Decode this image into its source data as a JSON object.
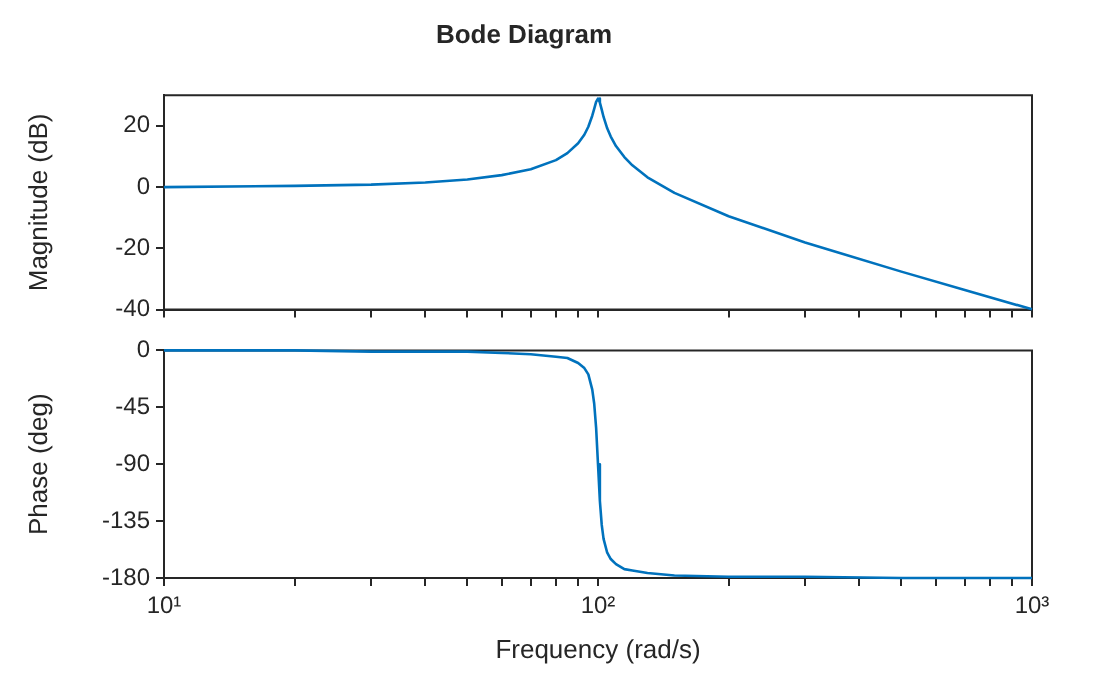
{
  "chart_data": [
    {
      "type": "line",
      "title": "Bode Diagram",
      "ylabel": "Magnitude (dB)",
      "tick_labels": "y",
      "x": [
        10,
        20,
        30,
        40,
        50,
        60,
        70,
        80,
        85,
        90,
        93,
        95,
        97,
        98,
        99,
        100,
        101,
        102,
        103,
        105,
        107,
        110,
        115,
        120,
        130,
        150,
        200,
        300,
        500,
        700,
        1000
      ],
      "series": [
        {
          "color": "#0072bd",
          "values": [
            0,
            0.4,
            0.8,
            1.5,
            2.5,
            3.9,
            5.8,
            8.8,
            11.1,
            14.3,
            17.1,
            19.7,
            23.3,
            25.5,
            27.8,
            28.9,
            27.6,
            25.3,
            22.9,
            19.2,
            16.5,
            13.4,
            9.8,
            7.1,
            3.2,
            -1.9,
            -9.5,
            -18.1,
            -27.6,
            -33.6,
            -39.9
          ]
        }
      ],
      "log": "x",
      "xlim": [
        10,
        1000
      ],
      "xticks": [
        10,
        {
          "value": 20,
          "label": null
        },
        {
          "value": 30,
          "label": null
        },
        {
          "value": 40,
          "label": null
        },
        {
          "value": 50,
          "label": null
        },
        {
          "value": 60,
          "label": null
        },
        {
          "value": 70,
          "label": null
        },
        {
          "value": 80,
          "label": null
        },
        {
          "value": 90,
          "label": null
        },
        100,
        {
          "value": 200,
          "label": null
        },
        {
          "value": 300,
          "label": null
        },
        {
          "value": 400,
          "label": null
        },
        {
          "value": 500,
          "label": null
        },
        {
          "value": 600,
          "label": null
        },
        {
          "value": 700,
          "label": null
        },
        {
          "value": 800,
          "label": null
        },
        {
          "value": 900,
          "label": null
        },
        1000
      ],
      "ylim": [
        -40,
        30
      ],
      "yticks": [
        -40,
        -20,
        0,
        20
      ]
    },
    {
      "type": "line",
      "xlabel": "Frequency (rad/s)",
      "ylabel": "Phase (deg)",
      "x": [
        10,
        20,
        30,
        40,
        50,
        60,
        70,
        80,
        85,
        90,
        93,
        95,
        97,
        98,
        99,
        100,
        101,
        102,
        103,
        105,
        107,
        110,
        115,
        120,
        130,
        150,
        200,
        300,
        500,
        700,
        1000
      ],
      "series": [
        {
          "color": "#0072bd",
          "values": [
            0,
            0,
            -1,
            -1,
            -1,
            -2,
            -3,
            -5,
            -6,
            -10,
            -14,
            -19,
            -31,
            -42,
            -61,
            -90,
            -119,
            -138,
            -149,
            -160,
            -165,
            -169,
            -173,
            -174,
            -176,
            -178,
            -179,
            -179,
            -180,
            -180,
            -180
          ]
        }
      ],
      "log": "x",
      "xlim": [
        10,
        1000
      ],
      "xticks": [
        {
          "value": 10,
          "label": "10¹"
        },
        {
          "value": 20,
          "label": null
        },
        {
          "value": 30,
          "label": null
        },
        {
          "value": 40,
          "label": null
        },
        {
          "value": 50,
          "label": null
        },
        {
          "value": 60,
          "label": null
        },
        {
          "value": 70,
          "label": null
        },
        {
          "value": 80,
          "label": null
        },
        {
          "value": 90,
          "label": null
        },
        {
          "value": 100,
          "label": "10²"
        },
        {
          "value": 200,
          "label": null
        },
        {
          "value": 300,
          "label": null
        },
        {
          "value": 400,
          "label": null
        },
        {
          "value": 500,
          "label": null
        },
        {
          "value": 600,
          "label": null
        },
        {
          "value": 700,
          "label": null
        },
        {
          "value": 800,
          "label": null
        },
        {
          "value": 900,
          "label": null
        },
        {
          "value": 1000,
          "label": "10³"
        }
      ],
      "ylim": [
        -180,
        0
      ],
      "yticks": [
        -180,
        -135,
        -90,
        -45,
        0
      ]
    }
  ]
}
